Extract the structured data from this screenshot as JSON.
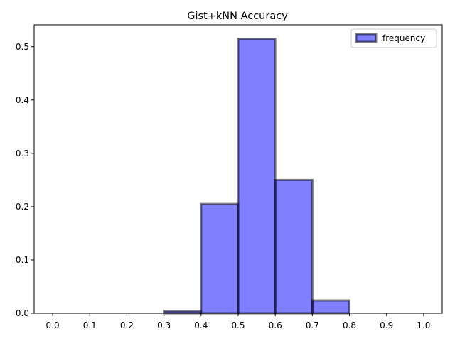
{
  "chart_data": {
    "type": "bar",
    "title": "Gist+kNN Accuracy",
    "xlabel": "",
    "ylabel": "",
    "bin_edges": [
      0.0,
      0.1,
      0.2,
      0.3,
      0.4,
      0.5,
      0.6,
      0.7,
      0.8,
      0.9,
      1.0
    ],
    "series": [
      {
        "name": "frequency",
        "values": [
          0.0,
          0.0,
          0.0,
          0.004,
          0.205,
          0.515,
          0.25,
          0.024,
          0.0,
          0.0
        ]
      }
    ],
    "xlim": [
      -0.05,
      1.05
    ],
    "ylim": [
      0,
      0.541
    ],
    "xticks": [
      "0.0",
      "0.1",
      "0.2",
      "0.3",
      "0.4",
      "0.5",
      "0.6",
      "0.7",
      "0.8",
      "0.9",
      "1.0"
    ],
    "yticks": [
      "0.0",
      "0.1",
      "0.2",
      "0.3",
      "0.4",
      "0.5"
    ],
    "grid": false,
    "legend_position": "top-right",
    "colors": {
      "bar_fill": "#0000ff",
      "bar_fill_opacity": 0.5,
      "bar_edge": "#000000",
      "bar_edge_opacity": 0.5
    }
  }
}
